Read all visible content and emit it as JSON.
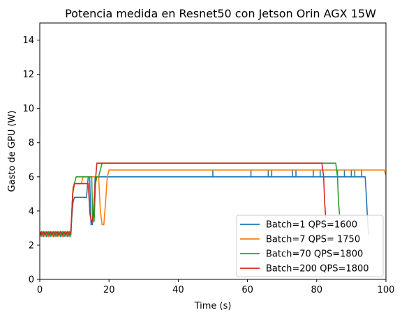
{
  "chart_data": {
    "type": "line",
    "title": "Potencia medida en Resnet50 con Jetson Orin AGX 15W",
    "xlabel": "Time (s)",
    "ylabel": "Gasto de GPU (W)",
    "xlim": [
      0,
      100
    ],
    "ylim": [
      0,
      15
    ],
    "xticks": [
      0,
      20,
      40,
      60,
      80,
      100
    ],
    "yticks": [
      0,
      2,
      4,
      6,
      8,
      10,
      12,
      14
    ],
    "grid": false,
    "legend_position": "lower-right",
    "series": [
      {
        "name": "Batch=1 QPS=1600",
        "color": "#1f77b4",
        "x": [
          0,
          0.5,
          1,
          1.5,
          2,
          2.5,
          3,
          3.5,
          4,
          4.5,
          5,
          5.5,
          6,
          6.5,
          7,
          7.5,
          8,
          8.5,
          8.8,
          9.2,
          9.6,
          10,
          10.5,
          11,
          12,
          13,
          13.5,
          14,
          14.4,
          14.8,
          15.2,
          15.6,
          16,
          16.4,
          16.8,
          17.2,
          50,
          50,
          50,
          61,
          61,
          61,
          66,
          66,
          66,
          67,
          67,
          67,
          73,
          73,
          73,
          74,
          74,
          74,
          79,
          79,
          79,
          81,
          81,
          81,
          86,
          86,
          86,
          88,
          88,
          88,
          90,
          90,
          90,
          91,
          91,
          91,
          93,
          93,
          93,
          94,
          94.3,
          94.6,
          95
        ],
        "y": [
          2.5,
          2.8,
          2.5,
          2.8,
          2.5,
          2.7,
          2.5,
          2.8,
          2.5,
          2.7,
          2.5,
          2.8,
          2.5,
          2.7,
          2.5,
          2.8,
          2.5,
          2.8,
          2.5,
          3.5,
          4.5,
          4.8,
          4.8,
          4.8,
          4.8,
          4.8,
          4.8,
          6.0,
          6.0,
          3.2,
          3.2,
          4.0,
          6.0,
          6.0,
          6.0,
          6.0,
          6.0,
          6.4,
          6.0,
          6.0,
          6.4,
          6.0,
          6.0,
          6.4,
          6.0,
          6.0,
          6.4,
          6.0,
          6.0,
          6.4,
          6.0,
          6.0,
          6.4,
          6.0,
          6.0,
          6.4,
          6.0,
          6.0,
          6.4,
          6.0,
          6.0,
          6.4,
          6.0,
          6.0,
          6.4,
          6.0,
          6.0,
          6.4,
          6.0,
          6.0,
          6.4,
          6.0,
          6.0,
          6.4,
          6.0,
          6.0,
          5.0,
          3.8,
          2.6
        ]
      },
      {
        "name": "Batch=7 QPS= 1750",
        "color": "#ff7f0e",
        "x": [
          0,
          0.5,
          1,
          1.5,
          2,
          2.5,
          3,
          3.5,
          4,
          4.5,
          5,
          5.5,
          6,
          6.5,
          7,
          7.5,
          8,
          8.5,
          9,
          9.3,
          9.6,
          10,
          11,
          12,
          12.5,
          13,
          14,
          15,
          16,
          16.5,
          17,
          17.5,
          18,
          18.5,
          19,
          19.5,
          20,
          30,
          50,
          70,
          90,
          99.5,
          100
        ],
        "y": [
          2.7,
          2.5,
          2.8,
          2.5,
          2.7,
          2.5,
          2.8,
          2.5,
          2.7,
          2.5,
          2.8,
          2.5,
          2.7,
          2.5,
          2.8,
          2.5,
          2.7,
          2.5,
          2.7,
          4.0,
          5.4,
          5.6,
          5.6,
          5.6,
          6.0,
          6.0,
          6.0,
          6.0,
          6.0,
          6.0,
          6.0,
          4.0,
          3.2,
          3.2,
          4.5,
          6.0,
          6.4,
          6.4,
          6.4,
          6.4,
          6.4,
          6.4,
          6.1
        ]
      },
      {
        "name": "Batch=70 QPS=1800",
        "color": "#2ca02c",
        "x": [
          0,
          0.5,
          1,
          1.5,
          2,
          2.5,
          3,
          3.5,
          4,
          4.5,
          5,
          5.5,
          6,
          6.5,
          7,
          7.5,
          8,
          8.5,
          9,
          9.5,
          10,
          10.5,
          11,
          12,
          13,
          14,
          15,
          15.3,
          15.7,
          16.1,
          16.5,
          17,
          17.5,
          18,
          30,
          50,
          70,
          85,
          85.5,
          86,
          86.3,
          86.6
        ],
        "y": [
          2.6,
          2.8,
          2.6,
          2.8,
          2.6,
          2.8,
          2.6,
          2.8,
          2.6,
          2.8,
          2.6,
          2.8,
          2.6,
          2.8,
          2.6,
          2.8,
          2.6,
          2.8,
          2.6,
          5.0,
          5.6,
          6.0,
          6.0,
          6.0,
          6.0,
          6.0,
          6.0,
          3.4,
          3.4,
          5.6,
          6.0,
          6.0,
          6.4,
          6.8,
          6.8,
          6.8,
          6.8,
          6.8,
          6.8,
          6.0,
          4.5,
          3.8
        ]
      },
      {
        "name": "Batch=200 QPS=1800",
        "color": "#d62728",
        "x": [
          0,
          0.5,
          1,
          1.5,
          2,
          2.5,
          3,
          3.5,
          4,
          4.5,
          5,
          5.5,
          6,
          6.5,
          7,
          7.5,
          8,
          8.5,
          9,
          9.5,
          10,
          11,
          12,
          13,
          13.5,
          14,
          14.5,
          15,
          15.5,
          16,
          16.5,
          17,
          30,
          50,
          70,
          81.5,
          82,
          82.3,
          82.6
        ],
        "y": [
          2.8,
          2.6,
          2.8,
          2.6,
          2.8,
          2.6,
          2.8,
          2.6,
          2.8,
          2.6,
          2.8,
          2.6,
          2.8,
          2.6,
          2.8,
          2.6,
          2.8,
          2.6,
          2.8,
          5.0,
          5.6,
          5.6,
          5.6,
          5.6,
          5.6,
          5.6,
          3.8,
          3.3,
          3.8,
          5.6,
          6.8,
          6.8,
          6.8,
          6.8,
          6.8,
          6.8,
          6.0,
          4.5,
          3.6
        ]
      }
    ]
  }
}
